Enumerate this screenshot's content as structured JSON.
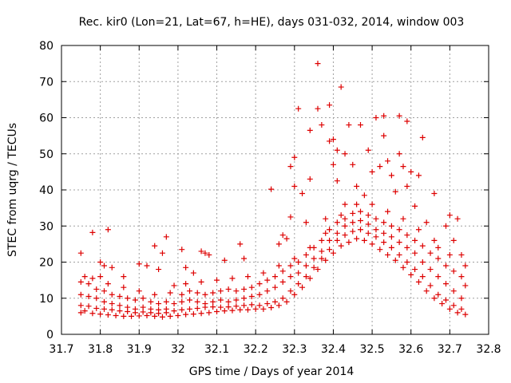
{
  "chart_data": {
    "type": "scatter",
    "title": "Rec. kir0 (Lon=21, Lat=67, h=HE), days 031-032, 2014, window 003",
    "xlabel": "GPS time / Days of year 2014",
    "ylabel": "STEC from uqrg / TECUs",
    "xlim": [
      31.7,
      32.8
    ],
    "ylim": [
      0,
      80
    ],
    "xticks": [
      "31.7",
      "31.8",
      "31.9",
      "32",
      "32.1",
      "32.2",
      "32.3",
      "32.4",
      "32.5",
      "32.6",
      "32.7",
      "32.8"
    ],
    "yticks": [
      "0",
      "10",
      "20",
      "30",
      "40",
      "50",
      "60",
      "70",
      "80"
    ],
    "grid": true,
    "marker": "+",
    "color": "#dd0000",
    "series": [
      {
        "name": "STEC",
        "points": [
          [
            31.75,
            6.0
          ],
          [
            31.76,
            6.5
          ],
          [
            31.78,
            5.8
          ],
          [
            31.8,
            5.6
          ],
          [
            31.82,
            5.4
          ],
          [
            31.84,
            5.2
          ],
          [
            31.86,
            5.0
          ],
          [
            31.88,
            5.0
          ],
          [
            31.9,
            5.1
          ],
          [
            31.92,
            5.2
          ],
          [
            31.94,
            5.0
          ],
          [
            31.96,
            4.8
          ],
          [
            31.98,
            5.0
          ],
          [
            32.0,
            5.2
          ],
          [
            32.02,
            5.5
          ],
          [
            32.04,
            5.6
          ],
          [
            32.06,
            5.8
          ],
          [
            32.08,
            6.0
          ],
          [
            32.1,
            6.3
          ],
          [
            32.12,
            6.5
          ],
          [
            32.14,
            6.6
          ],
          [
            32.16,
            6.8
          ],
          [
            32.18,
            6.8
          ],
          [
            32.2,
            7.0
          ],
          [
            32.22,
            7.0
          ],
          [
            32.24,
            7.4
          ],
          [
            32.26,
            8.0
          ],
          [
            32.28,
            9.0
          ],
          [
            32.3,
            11.0
          ],
          [
            32.32,
            13.0
          ],
          [
            32.34,
            15.5
          ],
          [
            32.36,
            18.0
          ],
          [
            32.38,
            20.5
          ],
          [
            32.4,
            22.5
          ],
          [
            32.42,
            24.5
          ],
          [
            32.44,
            25.5
          ],
          [
            32.46,
            26.5
          ],
          [
            32.48,
            26.0
          ],
          [
            32.5,
            25.0
          ],
          [
            32.52,
            23.5
          ],
          [
            32.54,
            22.0
          ],
          [
            32.56,
            20.5
          ],
          [
            32.58,
            18.5
          ],
          [
            32.6,
            16.5
          ],
          [
            32.62,
            14.5
          ],
          [
            32.64,
            12.0
          ],
          [
            32.66,
            10.0
          ],
          [
            32.68,
            8.5
          ],
          [
            32.7,
            7.0
          ],
          [
            32.72,
            6.0
          ],
          [
            32.74,
            5.5
          ],
          [
            31.75,
            8.0
          ],
          [
            31.77,
            7.8
          ],
          [
            31.79,
            7.2
          ],
          [
            31.81,
            7.0
          ],
          [
            31.83,
            6.8
          ],
          [
            31.85,
            6.5
          ],
          [
            31.87,
            6.3
          ],
          [
            31.89,
            6.0
          ],
          [
            31.91,
            6.2
          ],
          [
            31.93,
            6.0
          ],
          [
            31.95,
            5.8
          ],
          [
            31.97,
            6.0
          ],
          [
            31.99,
            6.5
          ],
          [
            32.01,
            6.8
          ],
          [
            32.03,
            7.0
          ],
          [
            32.05,
            7.2
          ],
          [
            32.07,
            7.5
          ],
          [
            32.09,
            7.6
          ],
          [
            32.11,
            7.5
          ],
          [
            32.13,
            7.6
          ],
          [
            32.15,
            7.8
          ],
          [
            32.17,
            8.0
          ],
          [
            32.19,
            8.2
          ],
          [
            32.21,
            8.0
          ],
          [
            32.23,
            8.5
          ],
          [
            32.25,
            9.0
          ],
          [
            32.27,
            10.0
          ],
          [
            32.29,
            12.0
          ],
          [
            32.31,
            14.0
          ],
          [
            32.33,
            16.0
          ],
          [
            32.35,
            18.5
          ],
          [
            32.37,
            21.0
          ],
          [
            32.39,
            23.5
          ],
          [
            32.41,
            26.0
          ],
          [
            32.43,
            27.5
          ],
          [
            32.45,
            28.5
          ],
          [
            32.47,
            29.0
          ],
          [
            32.49,
            28.0
          ],
          [
            32.51,
            27.0
          ],
          [
            32.53,
            25.5
          ],
          [
            32.55,
            24.0
          ],
          [
            32.57,
            22.0
          ],
          [
            32.59,
            20.0
          ],
          [
            32.61,
            18.0
          ],
          [
            32.63,
            16.0
          ],
          [
            32.65,
            13.5
          ],
          [
            32.67,
            11.0
          ],
          [
            32.69,
            9.5
          ],
          [
            32.71,
            8.0
          ],
          [
            32.73,
            7.0
          ],
          [
            31.75,
            11.0
          ],
          [
            31.77,
            10.5
          ],
          [
            31.79,
            10.0
          ],
          [
            31.81,
            9.0
          ],
          [
            31.83,
            8.5
          ],
          [
            31.85,
            8.0
          ],
          [
            31.87,
            7.5
          ],
          [
            31.89,
            7.0
          ],
          [
            31.91,
            7.5
          ],
          [
            31.93,
            7.0
          ],
          [
            31.95,
            6.8
          ],
          [
            31.97,
            7.0
          ],
          [
            31.99,
            8.5
          ],
          [
            32.01,
            9.0
          ],
          [
            32.03,
            9.5
          ],
          [
            32.05,
            9.0
          ],
          [
            32.07,
            8.5
          ],
          [
            32.09,
            9.0
          ],
          [
            32.11,
            9.5
          ],
          [
            32.13,
            9.0
          ],
          [
            32.15,
            9.5
          ],
          [
            32.17,
            10.0
          ],
          [
            32.19,
            10.5
          ],
          [
            32.21,
            11.0
          ],
          [
            32.23,
            12.0
          ],
          [
            32.25,
            13.0
          ],
          [
            32.27,
            14.5
          ],
          [
            32.29,
            16.0
          ],
          [
            32.31,
            17.0
          ],
          [
            32.33,
            19.0
          ],
          [
            32.35,
            21.0
          ],
          [
            32.37,
            23.0
          ],
          [
            32.39,
            26.0
          ],
          [
            32.41,
            28.0
          ],
          [
            32.43,
            30.0
          ],
          [
            32.45,
            31.0
          ],
          [
            32.47,
            31.5
          ],
          [
            32.49,
            30.5
          ],
          [
            32.51,
            29.0
          ],
          [
            32.53,
            28.0
          ],
          [
            32.55,
            27.0
          ],
          [
            32.57,
            25.5
          ],
          [
            32.59,
            24.0
          ],
          [
            32.61,
            22.5
          ],
          [
            32.63,
            20.0
          ],
          [
            32.65,
            18.0
          ],
          [
            32.67,
            16.0
          ],
          [
            32.69,
            14.0
          ],
          [
            32.71,
            12.0
          ],
          [
            32.73,
            10.0
          ],
          [
            31.75,
            14.5
          ],
          [
            31.77,
            14.0
          ],
          [
            31.79,
            12.5
          ],
          [
            31.81,
            12.0
          ],
          [
            31.83,
            11.0
          ],
          [
            31.85,
            10.5
          ],
          [
            31.87,
            10.0
          ],
          [
            31.89,
            9.5
          ],
          [
            31.91,
            10.0
          ],
          [
            31.93,
            9.0
          ],
          [
            31.95,
            8.5
          ],
          [
            31.97,
            9.0
          ],
          [
            32.01,
            11.0
          ],
          [
            32.03,
            12.0
          ],
          [
            32.05,
            11.5
          ],
          [
            32.07,
            11.0
          ],
          [
            32.09,
            11.5
          ],
          [
            32.11,
            12.0
          ],
          [
            32.13,
            12.5
          ],
          [
            32.15,
            12.0
          ],
          [
            32.17,
            12.5
          ],
          [
            32.19,
            13.0
          ],
          [
            32.21,
            14.0
          ],
          [
            32.23,
            15.0
          ],
          [
            32.25,
            16.0
          ],
          [
            32.27,
            17.5
          ],
          [
            32.29,
            19.0
          ],
          [
            32.31,
            20.0
          ],
          [
            32.33,
            22.0
          ],
          [
            32.35,
            24.0
          ],
          [
            32.37,
            26.0
          ],
          [
            32.39,
            29.0
          ],
          [
            32.41,
            31.0
          ],
          [
            32.43,
            32.0
          ],
          [
            32.45,
            33.5
          ],
          [
            32.47,
            34.0
          ],
          [
            32.49,
            33.0
          ],
          [
            32.51,
            32.0
          ],
          [
            32.53,
            31.0
          ],
          [
            32.55,
            30.0
          ],
          [
            32.57,
            29.0
          ],
          [
            32.59,
            27.5
          ],
          [
            32.61,
            26.0
          ],
          [
            32.63,
            24.5
          ],
          [
            32.65,
            22.5
          ],
          [
            32.67,
            21.0
          ],
          [
            32.69,
            19.0
          ],
          [
            32.71,
            17.5
          ],
          [
            32.73,
            16.0
          ],
          [
            31.76,
            16.0
          ],
          [
            31.78,
            15.5
          ],
          [
            31.8,
            16.0
          ],
          [
            31.82,
            14.0
          ],
          [
            31.86,
            13.0
          ],
          [
            31.9,
            12.0
          ],
          [
            31.94,
            11.0
          ],
          [
            31.98,
            11.5
          ],
          [
            32.02,
            14.0
          ],
          [
            32.06,
            14.5
          ],
          [
            32.1,
            15.0
          ],
          [
            32.14,
            15.5
          ],
          [
            32.18,
            16.0
          ],
          [
            32.22,
            17.0
          ],
          [
            32.26,
            19.0
          ],
          [
            32.3,
            21.0
          ],
          [
            32.34,
            24.0
          ],
          [
            32.38,
            28.0
          ],
          [
            32.42,
            33.0
          ],
          [
            32.46,
            36.0
          ],
          [
            32.5,
            36.0
          ],
          [
            32.54,
            34.0
          ],
          [
            32.58,
            32.0
          ],
          [
            32.62,
            29.0
          ],
          [
            32.66,
            26.0
          ],
          [
            32.7,
            22.0
          ],
          [
            32.74,
            19.0
          ],
          [
            31.75,
            22.5
          ],
          [
            31.78,
            28.2
          ],
          [
            31.8,
            20.0
          ],
          [
            31.81,
            19.0
          ],
          [
            31.82,
            29.0
          ],
          [
            31.83,
            18.5
          ],
          [
            31.86,
            16.0
          ],
          [
            31.9,
            19.5
          ],
          [
            31.92,
            19.0
          ],
          [
            31.94,
            24.5
          ],
          [
            31.95,
            18.0
          ],
          [
            31.96,
            22.5
          ],
          [
            31.97,
            27.0
          ],
          [
            31.99,
            13.5
          ],
          [
            32.01,
            23.5
          ],
          [
            32.02,
            18.5
          ],
          [
            32.04,
            17.0
          ],
          [
            32.06,
            23.0
          ],
          [
            32.07,
            22.5
          ],
          [
            32.08,
            22.0
          ],
          [
            32.12,
            20.5
          ],
          [
            32.16,
            25.0
          ],
          [
            32.17,
            21.0
          ],
          [
            32.24,
            40.2
          ],
          [
            32.26,
            25.0
          ],
          [
            32.27,
            27.5
          ],
          [
            32.28,
            26.5
          ],
          [
            32.29,
            32.5
          ],
          [
            32.29,
            46.5
          ],
          [
            32.3,
            41.0
          ],
          [
            32.3,
            49.0
          ],
          [
            32.31,
            62.5
          ],
          [
            32.32,
            39.0
          ],
          [
            32.33,
            31.0
          ],
          [
            32.34,
            56.5
          ],
          [
            32.34,
            43.0
          ],
          [
            32.36,
            75.0
          ],
          [
            32.36,
            62.5
          ],
          [
            32.37,
            58.0
          ],
          [
            32.38,
            32.0
          ],
          [
            32.39,
            53.5
          ],
          [
            32.39,
            63.5
          ],
          [
            32.4,
            47.0
          ],
          [
            32.4,
            54.0
          ],
          [
            32.41,
            51.0
          ],
          [
            32.41,
            42.5
          ],
          [
            32.42,
            68.5
          ],
          [
            32.43,
            50.0
          ],
          [
            32.43,
            36.0
          ],
          [
            32.44,
            58.0
          ],
          [
            32.45,
            47.0
          ],
          [
            32.46,
            41.0
          ],
          [
            32.47,
            58.0
          ],
          [
            32.48,
            38.5
          ],
          [
            32.49,
            51.0
          ],
          [
            32.5,
            45.0
          ],
          [
            32.51,
            60.0
          ],
          [
            32.52,
            46.5
          ],
          [
            32.53,
            60.5
          ],
          [
            32.53,
            55.0
          ],
          [
            32.54,
            48.0
          ],
          [
            32.55,
            44.0
          ],
          [
            32.56,
            39.5
          ],
          [
            32.57,
            60.5
          ],
          [
            32.57,
            50.0
          ],
          [
            32.58,
            46.5
          ],
          [
            32.59,
            59.0
          ],
          [
            32.59,
            41.0
          ],
          [
            32.6,
            45.0
          ],
          [
            32.61,
            35.5
          ],
          [
            32.62,
            44.0
          ],
          [
            32.63,
            54.5
          ],
          [
            32.64,
            31.0
          ],
          [
            32.66,
            39.0
          ],
          [
            32.67,
            24.0
          ],
          [
            32.69,
            30.0
          ],
          [
            32.7,
            33.0
          ],
          [
            32.71,
            26.0
          ],
          [
            32.72,
            32.0
          ],
          [
            32.73,
            22.0
          ],
          [
            32.74,
            13.5
          ]
        ]
      }
    ]
  }
}
